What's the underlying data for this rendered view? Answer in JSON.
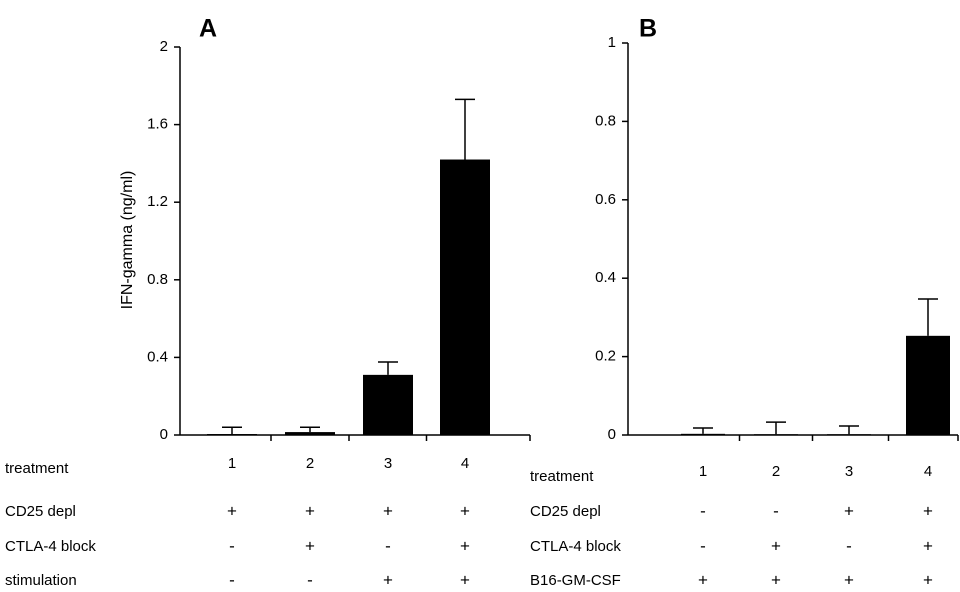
{
  "chart_data": [
    {
      "type": "bar",
      "title": "A",
      "ylabel": "IFN-gamma (ng/ml)",
      "color": "#000000",
      "categories": [
        "1",
        "2",
        "3",
        "4"
      ],
      "values": [
        0.005,
        0.015,
        0.31,
        1.42
      ],
      "errors": [
        0.035,
        0.025,
        0.066,
        0.31
      ],
      "ylim": [
        0,
        2
      ],
      "yticks": [
        0,
        0.4,
        0.8,
        1.2,
        1.6,
        2
      ],
      "category_label": "treatment",
      "conditions": [
        {
          "name": "CD25 depl",
          "values": [
            "+",
            "+",
            "+",
            "+"
          ]
        },
        {
          "name": "CTLA-4 block",
          "values": [
            "-",
            "+",
            "-",
            "+"
          ]
        },
        {
          "name": "stimulation",
          "values": [
            "-",
            "-",
            "+",
            "+"
          ]
        }
      ]
    },
    {
      "type": "bar",
      "title": "B",
      "color": "#000000",
      "categories": [
        "1",
        "2",
        "3",
        "4"
      ],
      "values": [
        0.003,
        0.002,
        0.002,
        0.253
      ],
      "errors": [
        0.015,
        0.031,
        0.021,
        0.094
      ],
      "ylim": [
        0,
        1
      ],
      "yticks": [
        0,
        0.2,
        0.4,
        0.6,
        0.8,
        1
      ],
      "category_label": "treatment",
      "conditions": [
        {
          "name": "CD25 depl",
          "values": [
            "-",
            "-",
            "+",
            "+"
          ]
        },
        {
          "name": "CTLA-4 block",
          "values": [
            "-",
            "+",
            "-",
            "+"
          ]
        },
        {
          "name": "B16-GM-CSF",
          "values": [
            "+",
            "+",
            "+",
            "+"
          ]
        }
      ]
    }
  ]
}
